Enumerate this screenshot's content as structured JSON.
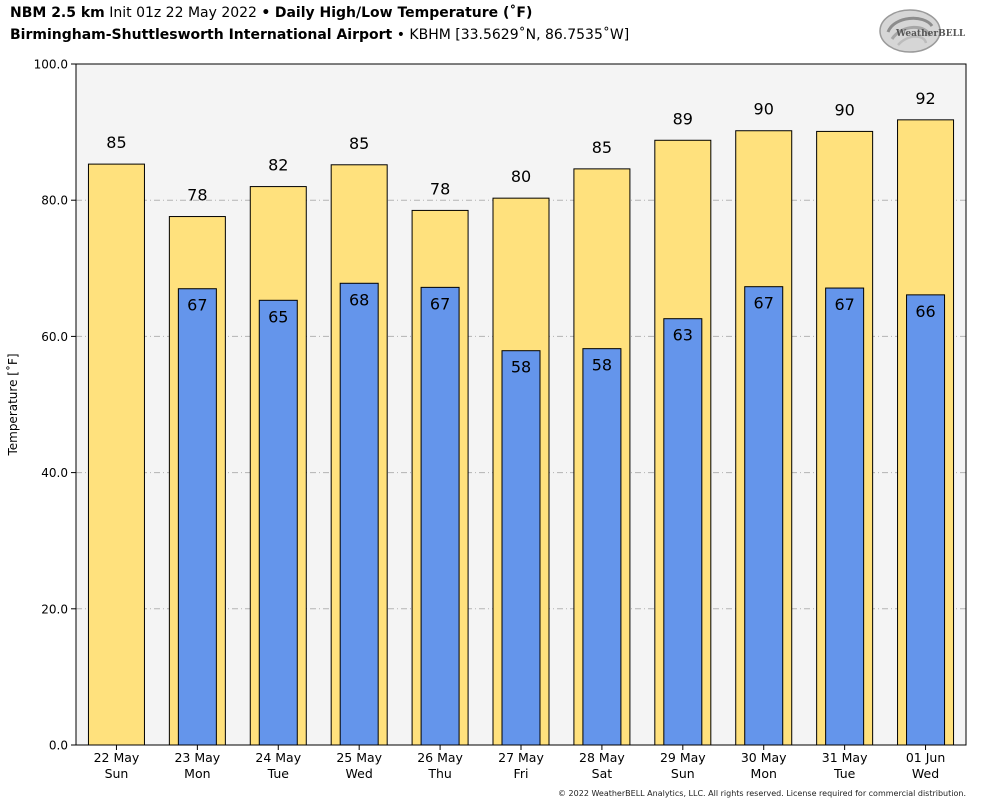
{
  "header": {
    "model": "NBM 2.5 km",
    "init": "Init 01z 22 May 2022",
    "bullet": "•",
    "product": "Daily High/Low Temperature (˚F)",
    "station": "Birmingham-Shuttlesworth International Airport",
    "station_code": "KBHM [33.5629˚N, 86.7535˚W]"
  },
  "logo_text": "WeatherBELL",
  "copyright": "© 2022 WeatherBELL Analytics, LLC. All rights reserved. License required for commercial distribution.",
  "colors": {
    "high_bar": "#ffe17d",
    "low_bar": "#6495eb",
    "plot_background": "#f4f4f4",
    "grid": "#b3b3b3"
  },
  "chart_data": {
    "type": "bar",
    "categories": [
      "22 May\nSun",
      "23 May\nMon",
      "24 May\nTue",
      "25 May\nWed",
      "26 May\nThu",
      "27 May\nFri",
      "28 May\nSat",
      "29 May\nSun",
      "30 May\nMon",
      "31 May\nTue",
      "01 Jun\nWed"
    ],
    "series": [
      {
        "key": "high",
        "values": [
          85.3,
          77.6,
          82.0,
          85.2,
          78.5,
          80.3,
          84.6,
          88.8,
          90.2,
          90.1,
          91.8
        ],
        "labels": [
          "85",
          "78",
          "82",
          "85",
          "78",
          "80",
          "85",
          "89",
          "90",
          "90",
          "92"
        ]
      },
      {
        "key": "low",
        "values": [
          null,
          67.0,
          65.3,
          67.8,
          67.2,
          57.9,
          58.2,
          62.6,
          67.3,
          67.1,
          66.1
        ],
        "labels": [
          "",
          "67",
          "65",
          "68",
          "67",
          "58",
          "58",
          "63",
          "67",
          "67",
          "66"
        ]
      }
    ],
    "title": "Daily High/Low Temperature (˚F)",
    "xlabel": "",
    "ylabel": "Temperature [˚F]",
    "ylim": [
      0,
      100
    ],
    "yticks": [
      "0.0",
      "20.0",
      "40.0",
      "60.0",
      "80.0",
      "100.0"
    ],
    "grid": true,
    "legend": "none"
  }
}
